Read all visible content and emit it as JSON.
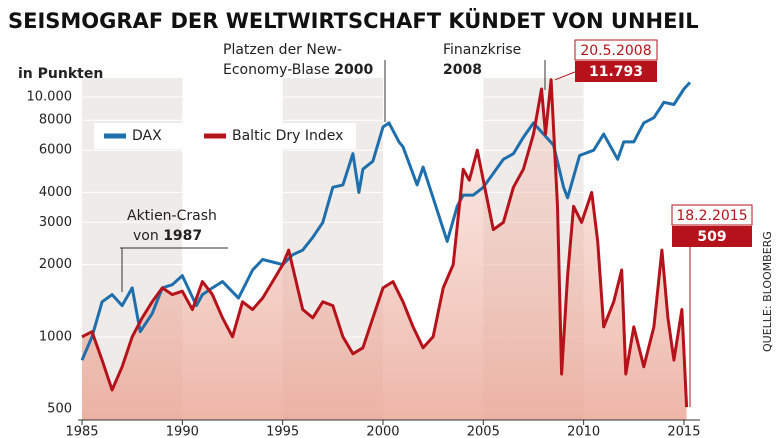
{
  "chart_data": {
    "type": "line",
    "title": "SEISMOGRAF DER WELTWIRTSCHAFT KÜNDET VON UNHEIL",
    "y_label": "in Punkten",
    "source": "QUELLE: BLOOMBERG",
    "log_scale": true,
    "xlim": [
      1984.8,
      2015.8
    ],
    "xticks": [
      1985,
      1990,
      1995,
      2000,
      2005,
      2010,
      2015
    ],
    "ylim": [
      450,
      12000
    ],
    "yticks": [
      500,
      1000,
      2000,
      3000,
      4000,
      6000,
      8000,
      {
        "value": 10000,
        "label": "10.000"
      }
    ],
    "series": [
      {
        "name": "DAX",
        "color": "#1f6fad",
        "x": [
          1985,
          1985.5,
          1986,
          1986.5,
          1987,
          1987.5,
          1987.9,
          1988.5,
          1989,
          1989.5,
          1990,
          1990.7,
          1991,
          1991.5,
          1992,
          1992.8,
          1993.5,
          1994,
          1995,
          1995.5,
          1996,
          1996.5,
          1997,
          1997.5,
          1998,
          1998.5,
          1998.8,
          1999,
          1999.5,
          2000,
          2000.3,
          2000.8,
          2001,
          2001.7,
          2002,
          2002.5,
          2003.2,
          2003.7,
          2004,
          2004.5,
          2005,
          2005.5,
          2006,
          2006.5,
          2007,
          2007.5,
          2008,
          2008.5,
          2009,
          2009.2,
          2009.8,
          2010.5,
          2011,
          2011.7,
          2012,
          2012.5,
          2013,
          2013.5,
          2014,
          2014.5,
          2015,
          2015.3
        ],
        "values": [
          800,
          1000,
          1400,
          1500,
          1350,
          1600,
          1050,
          1250,
          1600,
          1650,
          1800,
          1350,
          1500,
          1600,
          1700,
          1450,
          1900,
          2100,
          2000,
          2200,
          2300,
          2600,
          3000,
          4200,
          4300,
          5800,
          4000,
          5000,
          5400,
          7500,
          7800,
          6500,
          6200,
          4300,
          5100,
          3800,
          2500,
          3500,
          3900,
          3900,
          4200,
          4800,
          5500,
          5800,
          6800,
          7800,
          7000,
          6300,
          4200,
          3800,
          5700,
          6000,
          7000,
          5500,
          6500,
          6500,
          7800,
          8200,
          9500,
          9300,
          10800,
          11500
        ]
      },
      {
        "name": "Baltic Dry Index",
        "color": "#b5121b",
        "x": [
          1985,
          1985.5,
          1986,
          1986.5,
          1987,
          1987.5,
          1988,
          1988.5,
          1989,
          1989.5,
          1990,
          1990.5,
          1991,
          1991.5,
          1992,
          1992.5,
          1993,
          1993.5,
          1994,
          1994.5,
          1995,
          1995.3,
          1996,
          1996.5,
          1997,
          1997.5,
          1998,
          1998.5,
          1999,
          1999.5,
          2000,
          2000.5,
          2001,
          2001.5,
          2002,
          2002.5,
          2003,
          2003.5,
          2004,
          2004.3,
          2004.7,
          2005,
          2005.5,
          2006,
          2006.5,
          2007,
          2007.5,
          2007.9,
          2008.1,
          2008.38,
          2008.7,
          2008.9,
          2009.2,
          2009.5,
          2009.9,
          2010.4,
          2010.7,
          2011,
          2011.5,
          2011.9,
          2012.1,
          2012.5,
          2013,
          2013.5,
          2013.9,
          2014.2,
          2014.5,
          2014.9,
          2015.13
        ],
        "values": [
          1000,
          1050,
          800,
          600,
          750,
          1000,
          1200,
          1400,
          1600,
          1500,
          1550,
          1300,
          1700,
          1500,
          1200,
          1000,
          1400,
          1300,
          1450,
          1700,
          2000,
          2300,
          1300,
          1200,
          1400,
          1350,
          1000,
          850,
          900,
          1200,
          1600,
          1700,
          1400,
          1100,
          900,
          1000,
          1600,
          2000,
          5000,
          4500,
          6000,
          4500,
          2800,
          3000,
          4200,
          5000,
          7000,
          10800,
          7000,
          11793,
          3500,
          700,
          1800,
          3500,
          3000,
          4000,
          2500,
          1100,
          1400,
          1900,
          700,
          1100,
          750,
          1100,
          2300,
          1200,
          800,
          1300,
          509
        ]
      }
    ],
    "annotations": [
      {
        "lines": [
          "Platzen der New-",
          "Economy-Blase"
        ],
        "year": "2000"
      },
      {
        "lines": [
          "Finanzkrise"
        ],
        "year": "2008"
      },
      {
        "lines": [
          "Aktien-Crash",
          "von"
        ],
        "year": "1987"
      }
    ],
    "peak_label": {
      "date": "20.5.2008",
      "value": 11793,
      "label": "11.793"
    },
    "last_label": {
      "date": "18.2.2015",
      "value": 509
    }
  }
}
